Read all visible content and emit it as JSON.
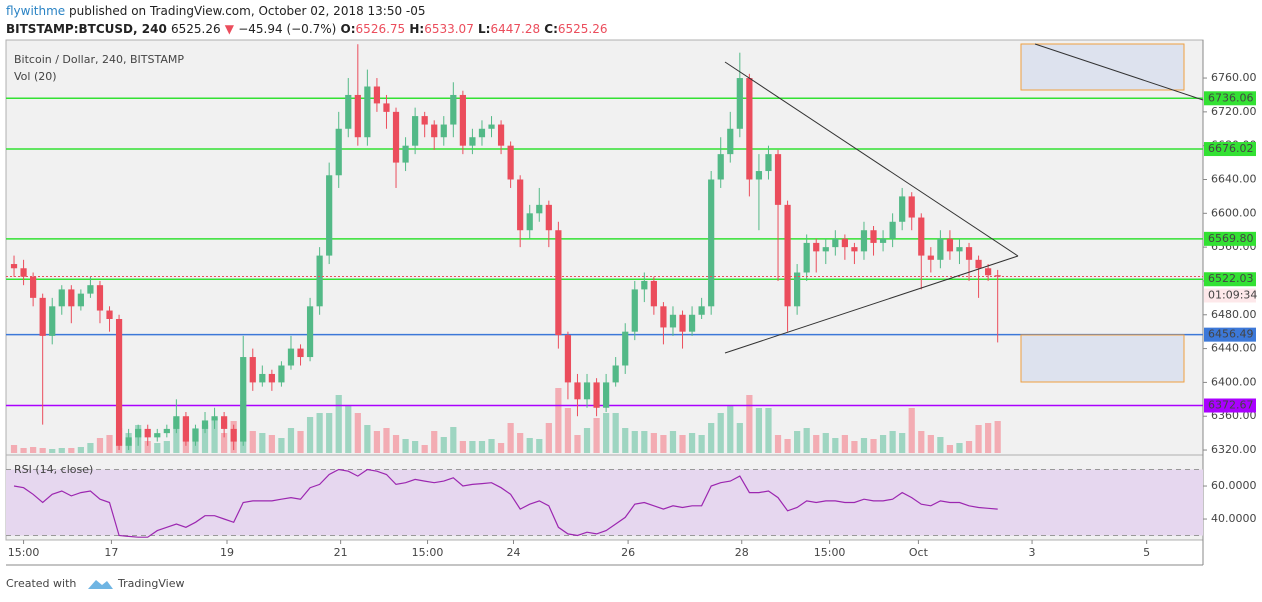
{
  "header": {
    "user": "flywithme",
    "published": "published on TradingView.com, October 02, 2018 13:50 -05",
    "symbol": "BITSTAMP:BTCUSD, 240",
    "last": "6525.26",
    "change": "−45.94 (−0.7%)",
    "o_label": "O:",
    "o": "6526.75",
    "h_label": "H:",
    "h": "6533.07",
    "l_label": "L:",
    "l": "6447.28",
    "c_label": "C:",
    "c": "6525.26"
  },
  "footer": {
    "created": "Created with",
    "brand": "TradingView"
  },
  "chart_data": {
    "type": "candlestick",
    "title": "Bitcoin / Dollar, 240, BITSTAMP",
    "volume_title": "Vol (20)",
    "rsi_title": "RSI (14, close)",
    "countdown": "01:09:34",
    "up_color": "#53b987",
    "down_color": "#eb4d5c",
    "open": [
      6540,
      6535,
      6525,
      6500,
      6455,
      6490,
      6510,
      6490,
      6505,
      6515,
      6485,
      6475,
      6325,
      6335,
      6345,
      6335,
      6340,
      6345,
      6360,
      6330,
      6345,
      6355,
      6360,
      6345,
      6330,
      6430,
      6400,
      6410,
      6400,
      6420,
      6440,
      6430,
      6490,
      6550,
      6645,
      6700,
      6740,
      6690,
      6750,
      6730,
      6720,
      6660,
      6680,
      6715,
      6705,
      6690,
      6705,
      6740,
      6680,
      6690,
      6700,
      6705,
      6680,
      6640,
      6580,
      6600,
      6610,
      6580,
      6456,
      6400,
      6380,
      6400,
      6370,
      6400,
      6420,
      6460,
      6510,
      6520,
      6490,
      6465,
      6480,
      6460,
      6480,
      6490,
      6640,
      6670,
      6700,
      6760,
      6640,
      6650,
      6670,
      6610,
      6490,
      6530,
      6565,
      6555,
      6560,
      6570,
      6560,
      6555,
      6580,
      6565,
      6570,
      6590,
      6620,
      6595,
      6550,
      6545,
      6570,
      6555,
      6560,
      6545,
      6535,
      6526.75
    ],
    "high": [
      6550,
      6545,
      6530,
      6505,
      6500,
      6515,
      6515,
      6510,
      6525,
      6520,
      6490,
      6480,
      6345,
      6350,
      6350,
      6345,
      6350,
      6380,
      6365,
      6350,
      6365,
      6370,
      6365,
      6350,
      6455,
      6440,
      6420,
      6415,
      6425,
      6455,
      6445,
      6500,
      6560,
      6660,
      6720,
      6760,
      6800,
      6770,
      6760,
      6740,
      6725,
      6690,
      6725,
      6720,
      6710,
      6715,
      6755,
      6745,
      6700,
      6710,
      6715,
      6710,
      6685,
      6645,
      6610,
      6630,
      6615,
      6590,
      6460,
      6410,
      6410,
      6405,
      6410,
      6430,
      6470,
      6520,
      6530,
      6525,
      6495,
      6490,
      6485,
      6490,
      6500,
      6650,
      6690,
      6720,
      6790,
      6765,
      6670,
      6680,
      6675,
      6615,
      6540,
      6575,
      6570,
      6570,
      6580,
      6575,
      6565,
      6590,
      6585,
      6580,
      6600,
      6630,
      6625,
      6600,
      6560,
      6580,
      6580,
      6570,
      6565,
      6550,
      6540,
      6533.07
    ],
    "low": [
      6525,
      6515,
      6490,
      6350,
      6445,
      6480,
      6470,
      6485,
      6500,
      6470,
      6460,
      6320,
      6320,
      6325,
      6325,
      6330,
      6335,
      6340,
      6325,
      6325,
      6340,
      6345,
      6335,
      6320,
      6325,
      6390,
      6395,
      6390,
      6395,
      6415,
      6420,
      6425,
      6480,
      6540,
      6630,
      6690,
      6680,
      6680,
      6720,
      6700,
      6630,
      6650,
      6670,
      6690,
      6675,
      6680,
      6690,
      6670,
      6670,
      6680,
      6690,
      6670,
      6630,
      6560,
      6570,
      6590,
      6560,
      6440,
      6380,
      6360,
      6370,
      6360,
      6365,
      6395,
      6410,
      6450,
      6495,
      6480,
      6445,
      6455,
      6440,
      6455,
      6475,
      6480,
      6630,
      6660,
      6690,
      6620,
      6580,
      6640,
      6520,
      6460,
      6480,
      6520,
      6530,
      6540,
      6550,
      6545,
      6540,
      6545,
      6550,
      6555,
      6560,
      6580,
      6580,
      6510,
      6530,
      6535,
      6545,
      6540,
      6520,
      6500,
      6520,
      6447.28
    ],
    "close": [
      6535,
      6525,
      6500,
      6455,
      6490,
      6510,
      6490,
      6505,
      6515,
      6485,
      6475,
      6325,
      6335,
      6345,
      6335,
      6340,
      6345,
      6360,
      6330,
      6345,
      6355,
      6360,
      6345,
      6330,
      6430,
      6400,
      6410,
      6400,
      6420,
      6440,
      6430,
      6490,
      6550,
      6645,
      6700,
      6740,
      6690,
      6750,
      6730,
      6720,
      6660,
      6680,
      6715,
      6705,
      6690,
      6705,
      6740,
      6680,
      6690,
      6700,
      6705,
      6680,
      6640,
      6580,
      6600,
      6610,
      6580,
      6456,
      6400,
      6380,
      6400,
      6370,
      6400,
      6420,
      6460,
      6510,
      6520,
      6490,
      6465,
      6480,
      6460,
      6480,
      6490,
      6640,
      6670,
      6700,
      6760,
      6640,
      6650,
      6670,
      6610,
      6490,
      6530,
      6565,
      6555,
      6560,
      6570,
      6560,
      6555,
      6580,
      6565,
      6570,
      6590,
      6620,
      6595,
      6550,
      6545,
      6570,
      6555,
      6560,
      6545,
      6535,
      6526.75,
      6525.26
    ],
    "volume": [
      8,
      5,
      6,
      5,
      4,
      5,
      5,
      6,
      10,
      15,
      18,
      25,
      20,
      28,
      12,
      10,
      12,
      35,
      35,
      25,
      28,
      35,
      20,
      32,
      52,
      22,
      20,
      18,
      15,
      25,
      22,
      36,
      40,
      40,
      58,
      48,
      40,
      28,
      22,
      25,
      18,
      14,
      12,
      8,
      22,
      16,
      26,
      12,
      12,
      12,
      14,
      10,
      30,
      20,
      15,
      14,
      30,
      65,
      45,
      18,
      25,
      35,
      40,
      40,
      25,
      22,
      22,
      20,
      18,
      22,
      18,
      20,
      18,
      30,
      40,
      48,
      30,
      58,
      45,
      45,
      18,
      14,
      22,
      25,
      18,
      20,
      15,
      18,
      12,
      15,
      14,
      18,
      22,
      20,
      45,
      22,
      18,
      16,
      8,
      10,
      12,
      28,
      30,
      32
    ],
    "rsi": [
      60,
      59,
      55,
      50,
      55,
      57,
      54,
      56,
      57,
      52,
      50,
      30,
      29.5,
      29,
      29,
      33,
      35,
      37,
      35,
      38,
      42,
      42,
      40,
      38,
      50,
      51,
      51,
      51,
      52,
      53,
      52,
      59,
      61,
      67,
      70,
      69,
      66,
      70,
      69,
      67,
      61,
      62,
      64,
      63,
      62,
      63,
      65,
      60,
      61,
      61.5,
      62,
      59,
      55,
      46,
      49,
      51,
      48,
      35,
      31,
      30,
      32,
      31,
      33,
      37,
      41,
      49,
      50,
      48,
      46,
      48,
      47,
      48,
      48,
      60,
      62,
      63,
      66,
      56,
      56,
      57,
      53,
      45,
      47,
      51,
      50,
      51,
      51,
      50,
      50,
      52,
      51,
      51,
      52,
      56,
      53,
      49,
      48,
      51,
      50,
      50,
      48,
      47,
      46.5,
      46
    ],
    "rsi_color": "#9c27b0",
    "rsi_bands": [
      30,
      70
    ],
    "levels": [
      {
        "value": 6736.06,
        "label": "6736.06",
        "color": "#33e133"
      },
      {
        "value": 6676.02,
        "label": "6676.02",
        "color": "#33e133"
      },
      {
        "value": 6569.8,
        "label": "6569.80",
        "color": "#33e133"
      },
      {
        "value": 6522.03,
        "label": "6522.03",
        "color": "#33e133"
      },
      {
        "value": 6456.49,
        "label": "6456.49",
        "color": "#3c78d8"
      },
      {
        "value": 6372.67,
        "label": "6372.67",
        "color": "#aa00ff"
      }
    ],
    "xlim": [
      -0.84,
      124.5
    ],
    "xticks": [
      {
        "value": 1,
        "label": "15:00"
      },
      {
        "value": 10.2,
        "label": "17"
      },
      {
        "value": 22.3,
        "label": "19"
      },
      {
        "value": 34.2,
        "label": "21"
      },
      {
        "value": 43.3,
        "label": "15:00"
      },
      {
        "value": 52.3,
        "label": "24"
      },
      {
        "value": 64.3,
        "label": "26"
      },
      {
        "value": 76.2,
        "label": "28"
      },
      {
        "value": 85.4,
        "label": "15:00"
      },
      {
        "value": 94.7,
        "label": "Oct"
      },
      {
        "value": 106.6,
        "label": "3"
      },
      {
        "value": 118.6,
        "label": "5"
      }
    ],
    "ylim": [
      6316.5,
      6805
    ],
    "yticks": [
      {
        "value": 6320,
        "label": "6320.00"
      },
      {
        "value": 6360,
        "label": "6360.00"
      },
      {
        "value": 6400,
        "label": "6400.00"
      },
      {
        "value": 6440,
        "label": "6440.00"
      },
      {
        "value": 6480,
        "label": "6480.00"
      },
      {
        "value": 6520,
        "label": "6520.00"
      },
      {
        "value": 6560,
        "label": "6560.00"
      },
      {
        "value": 6600,
        "label": "6600.00"
      },
      {
        "value": 6640,
        "label": "6640.00"
      },
      {
        "value": 6680,
        "label": "6680.00"
      },
      {
        "value": 6720,
        "label": "6720.00"
      },
      {
        "value": 6760,
        "label": "6760.00"
      }
    ],
    "rsi_ylim": [
      27.3,
      78.8
    ],
    "rsi_yticks": [
      {
        "value": 40,
        "label": "40.0000"
      },
      {
        "value": 60,
        "label": "60.0000"
      }
    ]
  }
}
